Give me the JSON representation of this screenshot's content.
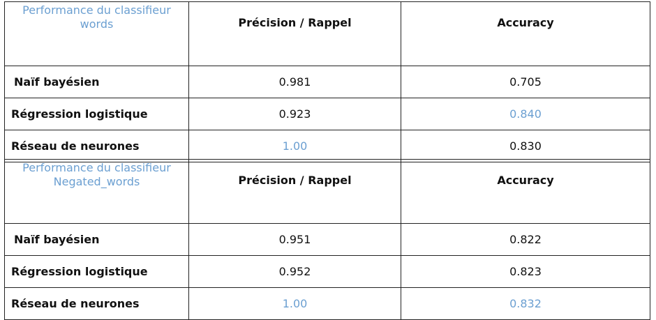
{
  "tables": [
    {
      "caption_line1": "Performance du classifieur",
      "caption_line2": "words",
      "col_precision": "Précision / Rappel",
      "col_accuracy": "Accuracy",
      "rows": [
        {
          "label": "Naïf bayésien",
          "precision": "0.981",
          "accuracy": "0.705"
        },
        {
          "label": "Régression logistique",
          "precision": "0.923",
          "accuracy": "0.840"
        },
        {
          "label": "Réseau de neurones",
          "precision": "1.00",
          "accuracy": "0.830"
        }
      ]
    },
    {
      "caption_line1": "Performance du classifieur",
      "caption_line2": "Negated_words",
      "col_precision": "Précision / Rappel",
      "col_accuracy": "Accuracy",
      "rows": [
        {
          "label": "Naïf bayésien",
          "precision": "0.951",
          "accuracy": "0.822"
        },
        {
          "label": "Régression logistique",
          "precision": "0.952",
          "accuracy": "0.823"
        },
        {
          "label": "Réseau de neurones",
          "precision": "1.00",
          "accuracy": "0.832"
        }
      ]
    }
  ],
  "colors": {
    "highlight": "#6b9fd1",
    "text": "#111111",
    "border": "#222222"
  }
}
